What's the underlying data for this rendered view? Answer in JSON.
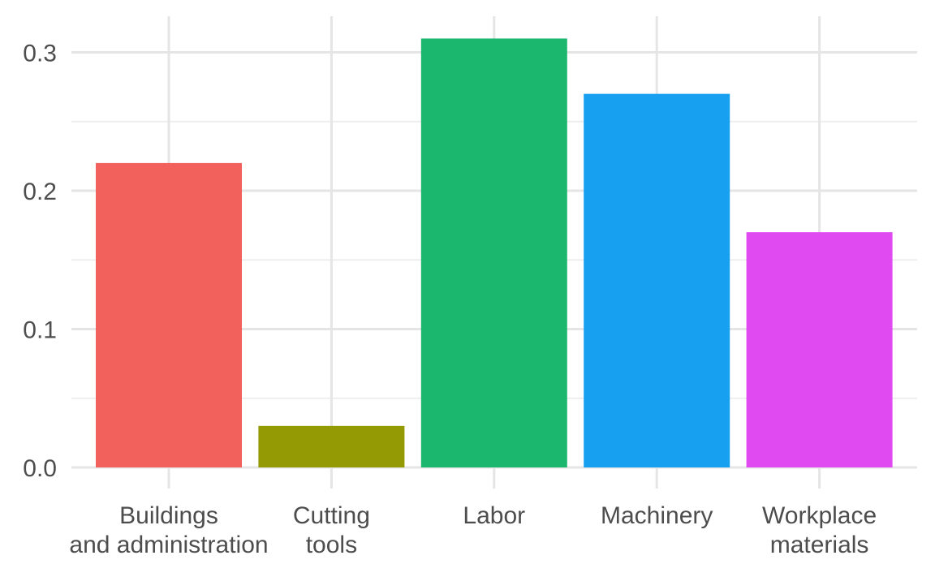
{
  "chart_data": {
    "type": "bar",
    "categories": [
      [
        "Buildings",
        "and administration"
      ],
      [
        "Cutting",
        "tools"
      ],
      [
        "Labor"
      ],
      [
        "Machinery"
      ],
      [
        "Workplace",
        "materials"
      ]
    ],
    "values": [
      0.22,
      0.03,
      0.31,
      0.27,
      0.17
    ],
    "colors": [
      "#F2615B",
      "#939A03",
      "#1CB76F",
      "#179FF0",
      "#DF4AF1"
    ],
    "ylim": [
      0,
      0.33
    ],
    "yticks": [
      0.0,
      0.1,
      0.2,
      0.3
    ],
    "ytick_labels": [
      "0.0",
      "0.1",
      "0.2",
      "0.3"
    ],
    "title": "",
    "xlabel": "",
    "ylabel": "",
    "grid": true,
    "legend": "none"
  }
}
